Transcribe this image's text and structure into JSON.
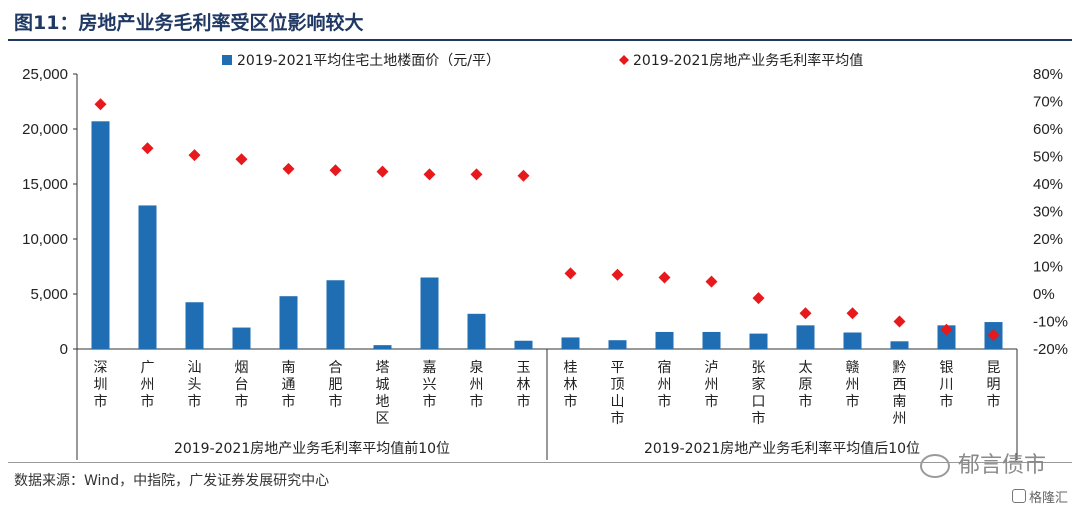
{
  "figure": {
    "title": "图11：房地产业务毛利率受区位影响较大",
    "source": "数据来源：Wind，中指院，广发证券发展研究中心",
    "watermark": "郁言债市",
    "logo": "格隆汇"
  },
  "colors": {
    "title": "#1f3864",
    "bar": "#1f6eb3",
    "marker": "#e8191c"
  },
  "chart_data": {
    "type": "bar",
    "categories": [
      "深圳市",
      "广州市",
      "汕头市",
      "烟台市",
      "南通市",
      "合肥市",
      "塔城地区",
      "嘉兴市",
      "泉州市",
      "玉林市",
      "桂林市",
      "平顶山市",
      "宿州市",
      "泸州市",
      "张家口市",
      "太原市",
      "赣州市",
      "黔西南州",
      "银川市",
      "昆明市"
    ],
    "series": [
      {
        "name": "2019-2021平均住宅土地楼面价（元/平）",
        "kind": "bar",
        "axis": "left",
        "values": [
          20700,
          13050,
          4250,
          1950,
          4800,
          6250,
          350,
          6500,
          3200,
          750,
          1050,
          800,
          1550,
          1550,
          1400,
          2150,
          1500,
          700,
          2150,
          2450
        ]
      },
      {
        "name": "2019-2021房地产业务毛利率平均值",
        "kind": "scatter",
        "marker": "diamond",
        "axis": "right",
        "values": [
          69,
          53,
          50.5,
          49,
          45.5,
          45,
          44.5,
          43.5,
          43.5,
          43,
          7.5,
          7,
          6,
          4.5,
          -1.5,
          -7,
          -7,
          -10,
          -13,
          -15
        ]
      }
    ],
    "yleft": {
      "lim": [
        0,
        25000
      ],
      "ticks": [
        "0",
        "5,000",
        "10,000",
        "15,000",
        "20,000",
        "25,000"
      ]
    },
    "yright": {
      "lim": [
        -20,
        80
      ],
      "ticks": [
        "-20%",
        "-10%",
        "0%",
        "10%",
        "20%",
        "30%",
        "40%",
        "50%",
        "60%",
        "70%",
        "80%"
      ]
    },
    "groups": [
      {
        "label": "2019-2021房地产业务毛利率平均值前10位",
        "count": 10
      },
      {
        "label": "2019-2021房地产业务毛利率平均值后10位",
        "count": 10
      }
    ],
    "legend_position": "top"
  }
}
